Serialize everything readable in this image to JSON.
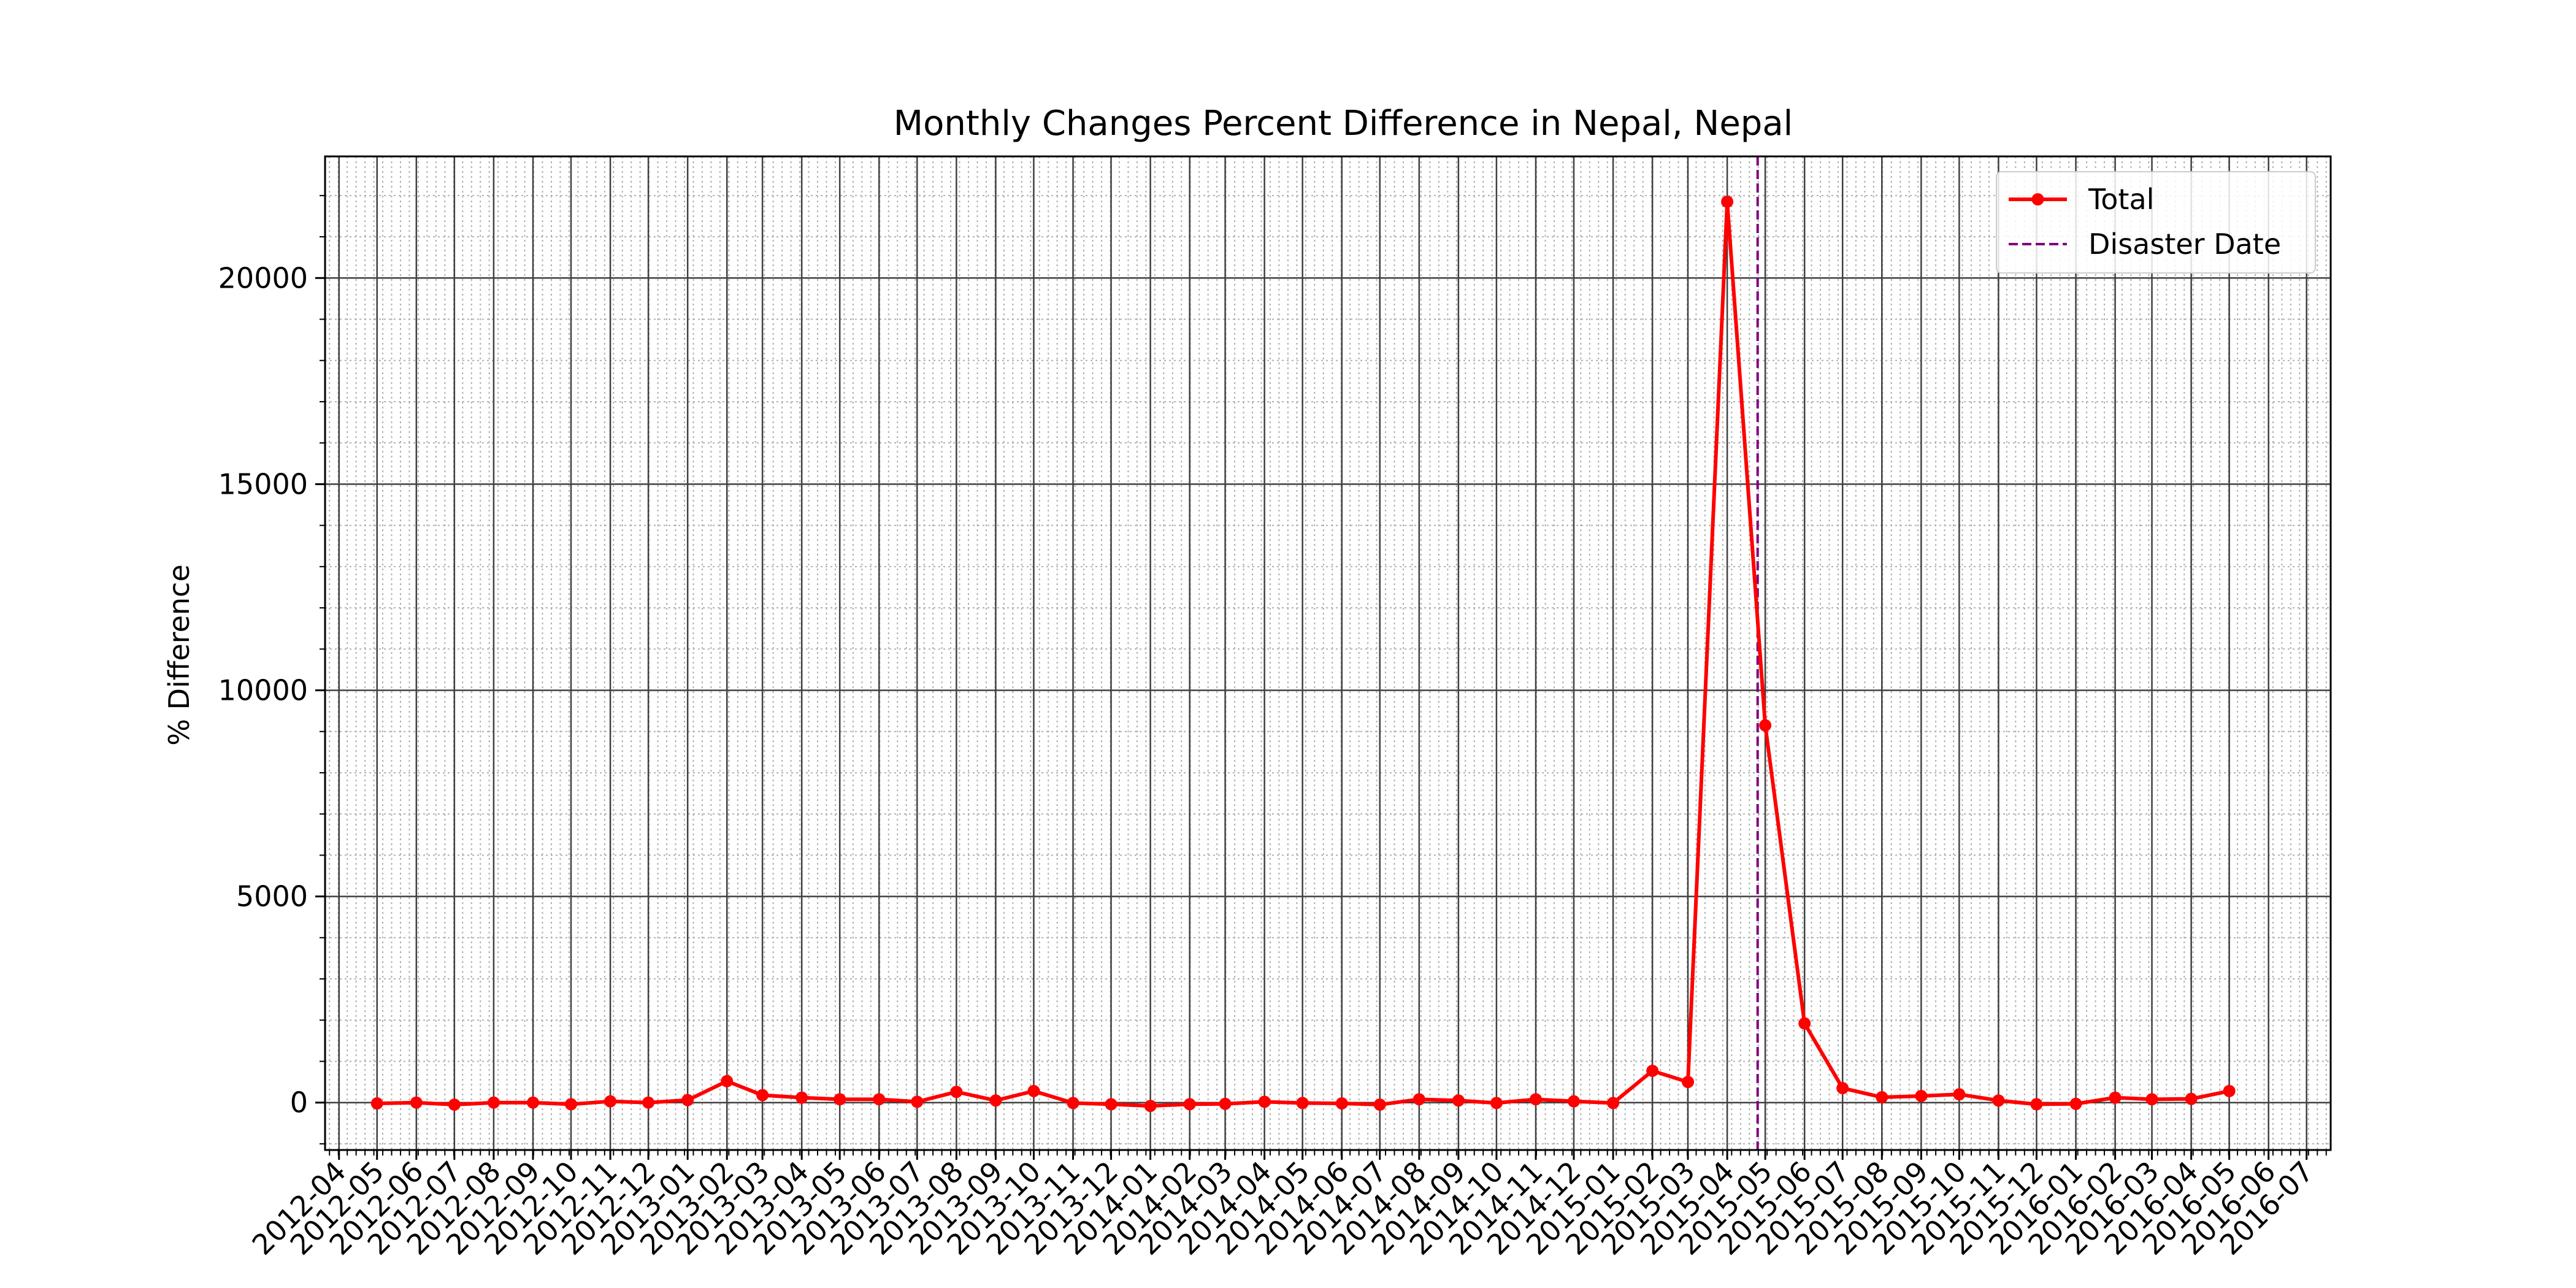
{
  "chart_data": {
    "type": "line",
    "title": "Monthly Changes Percent Difference in Nepal, Nepal",
    "xlabel": "",
    "ylabel": "% Difference",
    "x_ticks": [
      "2012-04",
      "2012-05",
      "2012-06",
      "2012-07",
      "2012-08",
      "2012-09",
      "2012-10",
      "2012-11",
      "2012-12",
      "2013-01",
      "2013-02",
      "2013-03",
      "2013-04",
      "2013-05",
      "2013-06",
      "2013-07",
      "2013-08",
      "2013-09",
      "2013-10",
      "2013-11",
      "2013-12",
      "2014-01",
      "2014-02",
      "2014-03",
      "2014-04",
      "2014-05",
      "2014-06",
      "2014-07",
      "2014-08",
      "2014-09",
      "2014-10",
      "2014-11",
      "2014-12",
      "2015-01",
      "2015-02",
      "2015-03",
      "2015-04",
      "2015-05",
      "2015-06",
      "2015-07",
      "2015-08",
      "2015-09",
      "2015-10",
      "2015-11",
      "2015-12",
      "2016-01",
      "2016-02",
      "2016-03",
      "2016-04",
      "2016-05",
      "2016-06",
      "2016-07"
    ],
    "x_range": [
      "2012-03-21",
      "2016-07-20"
    ],
    "y_ticks": [
      0,
      5000,
      10000,
      15000,
      20000
    ],
    "ylim": [
      -1150,
      22950
    ],
    "grid": true,
    "legend_position": "top-right",
    "series": [
      {
        "name": "Total",
        "color": "#ff0000",
        "marker": "circle",
        "points": [
          [
            "2012-05-01",
            -20
          ],
          [
            "2012-06-01",
            0
          ],
          [
            "2012-07-01",
            -50
          ],
          [
            "2012-08-01",
            0
          ],
          [
            "2012-09-01",
            0
          ],
          [
            "2012-10-01",
            -40
          ],
          [
            "2012-11-01",
            30
          ],
          [
            "2012-12-01",
            0
          ],
          [
            "2013-01-01",
            60
          ],
          [
            "2013-02-01",
            520
          ],
          [
            "2013-03-01",
            180
          ],
          [
            "2013-04-01",
            120
          ],
          [
            "2013-05-01",
            80
          ],
          [
            "2013-06-01",
            80
          ],
          [
            "2013-07-01",
            20
          ],
          [
            "2013-08-01",
            260
          ],
          [
            "2013-09-01",
            50
          ],
          [
            "2013-10-01",
            280
          ],
          [
            "2013-11-01",
            -10
          ],
          [
            "2013-12-01",
            -40
          ],
          [
            "2014-01-01",
            -80
          ],
          [
            "2014-02-01",
            -40
          ],
          [
            "2014-03-01",
            -30
          ],
          [
            "2014-04-01",
            20
          ],
          [
            "2014-05-01",
            -10
          ],
          [
            "2014-06-01",
            -20
          ],
          [
            "2014-07-01",
            -50
          ],
          [
            "2014-08-01",
            80
          ],
          [
            "2014-09-01",
            50
          ],
          [
            "2014-10-01",
            -10
          ],
          [
            "2014-11-01",
            80
          ],
          [
            "2014-12-01",
            30
          ],
          [
            "2015-01-01",
            -10
          ],
          [
            "2015-02-01",
            770
          ],
          [
            "2015-03-01",
            500
          ],
          [
            "2015-04-01",
            21850
          ],
          [
            "2015-05-01",
            9150
          ],
          [
            "2015-06-01",
            1920
          ],
          [
            "2015-07-01",
            350
          ],
          [
            "2015-08-01",
            130
          ],
          [
            "2015-09-01",
            160
          ],
          [
            "2015-10-01",
            200
          ],
          [
            "2015-11-01",
            50
          ],
          [
            "2015-12-01",
            -40
          ],
          [
            "2016-01-01",
            -30
          ],
          [
            "2016-02-01",
            120
          ],
          [
            "2016-03-01",
            80
          ],
          [
            "2016-04-01",
            90
          ],
          [
            "2016-05-01",
            280
          ]
        ]
      }
    ],
    "vlines": [
      {
        "name": "Disaster Date",
        "x": "2015-04-25",
        "color": "#800080",
        "style": "dashed"
      }
    ],
    "legend": [
      {
        "label": "Total",
        "kind": "line-marker",
        "color": "#ff0000"
      },
      {
        "label": "Disaster Date",
        "kind": "dashed",
        "color": "#800080"
      }
    ]
  }
}
